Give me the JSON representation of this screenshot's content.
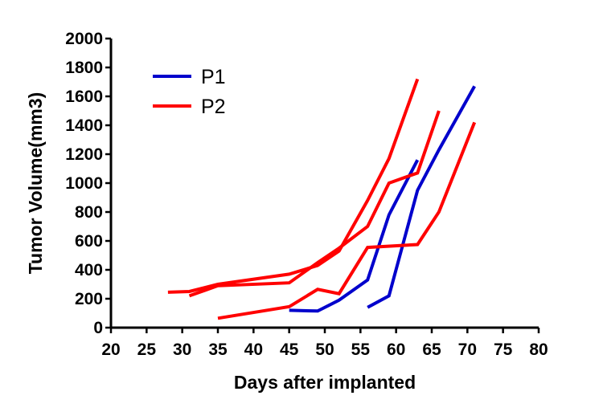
{
  "chart_data": {
    "type": "line",
    "title": "",
    "xlabel": "Days after implanted",
    "ylabel": "Tumor Volume(mm3)",
    "xlim": [
      20,
      80
    ],
    "ylim": [
      0,
      2000
    ],
    "x_ticks": [
      20,
      25,
      30,
      35,
      40,
      45,
      50,
      55,
      60,
      65,
      70,
      75,
      80
    ],
    "y_ticks": [
      0,
      200,
      400,
      600,
      800,
      1000,
      1200,
      1400,
      1600,
      1800,
      2000
    ],
    "grid": false,
    "legend_position": "top-left",
    "legend": [
      {
        "name": "P1",
        "color": "#0000cc"
      },
      {
        "name": "P2",
        "color": "#ff0000"
      }
    ],
    "series": [
      {
        "group": "P1",
        "color": "#0000cc",
        "points": [
          [
            45,
            120
          ],
          [
            49,
            115
          ],
          [
            52,
            190
          ],
          [
            56,
            330
          ],
          [
            59,
            780
          ],
          [
            63,
            1160
          ]
        ]
      },
      {
        "group": "P1",
        "color": "#0000cc",
        "points": [
          [
            56,
            140
          ],
          [
            59,
            220
          ],
          [
            63,
            950
          ],
          [
            66,
            1230
          ],
          [
            71,
            1670
          ]
        ]
      },
      {
        "group": "P2",
        "color": "#ff0000",
        "points": [
          [
            28,
            245
          ],
          [
            31,
            250
          ],
          [
            35,
            300
          ],
          [
            45,
            370
          ],
          [
            49,
            430
          ],
          [
            52,
            530
          ],
          [
            56,
            880
          ],
          [
            59,
            1170
          ],
          [
            63,
            1720
          ]
        ]
      },
      {
        "group": "P2",
        "color": "#ff0000",
        "points": [
          [
            31,
            220
          ],
          [
            35,
            290
          ],
          [
            45,
            310
          ],
          [
            49,
            450
          ],
          [
            52,
            550
          ],
          [
            56,
            700
          ],
          [
            59,
            1000
          ],
          [
            63,
            1070
          ],
          [
            66,
            1500
          ]
        ]
      },
      {
        "group": "P2",
        "color": "#ff0000",
        "points": [
          [
            35,
            65
          ],
          [
            45,
            145
          ],
          [
            49,
            265
          ],
          [
            52,
            235
          ],
          [
            56,
            555
          ],
          [
            63,
            575
          ],
          [
            66,
            800
          ],
          [
            71,
            1420
          ]
        ]
      }
    ]
  }
}
